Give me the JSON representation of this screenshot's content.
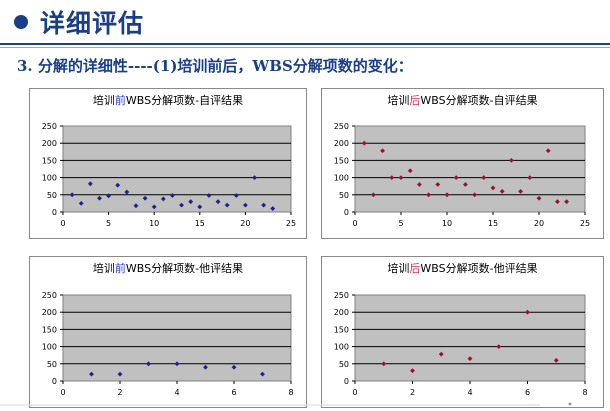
{
  "slide": {
    "title": "详细评估",
    "subtitle": "3.  分解的详细性----(1)培训前后，WBS分解项数的变化："
  },
  "colors": {
    "title": "#1a3f87",
    "before": "#1f1f8f",
    "after": "#9b1030",
    "plot_bg": "#c0c0c0"
  },
  "chart_data": [
    {
      "type": "scatter",
      "title_parts": [
        "培训",
        "前",
        "WBS分解项数-自评结果"
      ],
      "highlight_color": "#2b3fd0",
      "marker_color": "#1f1f8f",
      "xlim": [
        0,
        25
      ],
      "ylim": [
        0,
        250
      ],
      "xticks": [
        0,
        5,
        10,
        15,
        20,
        25
      ],
      "yticks": [
        0,
        50,
        100,
        150,
        200,
        250
      ],
      "grid": true,
      "points": [
        [
          1,
          50
        ],
        [
          2,
          25
        ],
        [
          3,
          82
        ],
        [
          4,
          40
        ],
        [
          5,
          47
        ],
        [
          6,
          78
        ],
        [
          7,
          58
        ],
        [
          8,
          18
        ],
        [
          9,
          40
        ],
        [
          10,
          15
        ],
        [
          11,
          38
        ],
        [
          12,
          48
        ],
        [
          13,
          20
        ],
        [
          14,
          30
        ],
        [
          15,
          15
        ],
        [
          16,
          48
        ],
        [
          17,
          30
        ],
        [
          18,
          20
        ],
        [
          19,
          48
        ],
        [
          20,
          20
        ],
        [
          21,
          100
        ],
        [
          22,
          20
        ],
        [
          23,
          10
        ]
      ]
    },
    {
      "type": "scatter",
      "title_parts": [
        "培训",
        "后",
        "WBS分解项数-自评结果"
      ],
      "highlight_color": "#e03060",
      "marker_color": "#9b1030",
      "xlim": [
        0,
        25
      ],
      "ylim": [
        0,
        250
      ],
      "xticks": [
        0,
        5,
        10,
        15,
        20,
        25
      ],
      "yticks": [
        0,
        50,
        100,
        150,
        200,
        250
      ],
      "grid": true,
      "points": [
        [
          1,
          200
        ],
        [
          2,
          50
        ],
        [
          3,
          178
        ],
        [
          4,
          100
        ],
        [
          5,
          100
        ],
        [
          6,
          120
        ],
        [
          7,
          80
        ],
        [
          8,
          50
        ],
        [
          9,
          80
        ],
        [
          10,
          50
        ],
        [
          11,
          100
        ],
        [
          12,
          80
        ],
        [
          13,
          50
        ],
        [
          14,
          100
        ],
        [
          15,
          70
        ],
        [
          16,
          60
        ],
        [
          17,
          150
        ],
        [
          18,
          60
        ],
        [
          19,
          100
        ],
        [
          20,
          40
        ],
        [
          21,
          178
        ],
        [
          22,
          30
        ],
        [
          23,
          30
        ]
      ]
    },
    {
      "type": "scatter",
      "title_parts": [
        "培训",
        "前",
        "WBS分解项数-他评结果"
      ],
      "highlight_color": "#2b3fd0",
      "marker_color": "#1f1f8f",
      "xlim": [
        0,
        8
      ],
      "ylim": [
        0,
        250
      ],
      "xticks": [
        0,
        2,
        4,
        6,
        8
      ],
      "yticks": [
        0,
        50,
        100,
        150,
        200,
        250
      ],
      "grid": true,
      "points": [
        [
          1,
          20
        ],
        [
          2,
          20
        ],
        [
          3,
          50
        ],
        [
          4,
          50
        ],
        [
          5,
          40
        ],
        [
          6,
          40
        ],
        [
          7,
          20
        ]
      ]
    },
    {
      "type": "scatter",
      "title_parts": [
        "培训",
        "后",
        "WBS分解项数-他评结果"
      ],
      "highlight_color": "#e03060",
      "marker_color": "#9b1030",
      "xlim": [
        0,
        8
      ],
      "ylim": [
        0,
        250
      ],
      "xticks": [
        0,
        2,
        4,
        6,
        8
      ],
      "yticks": [
        0,
        50,
        100,
        150,
        200,
        250
      ],
      "grid": true,
      "points": [
        [
          1,
          50
        ],
        [
          2,
          30
        ],
        [
          3,
          78
        ],
        [
          4,
          65
        ],
        [
          5,
          100
        ],
        [
          6,
          200
        ],
        [
          7,
          60
        ]
      ]
    }
  ]
}
